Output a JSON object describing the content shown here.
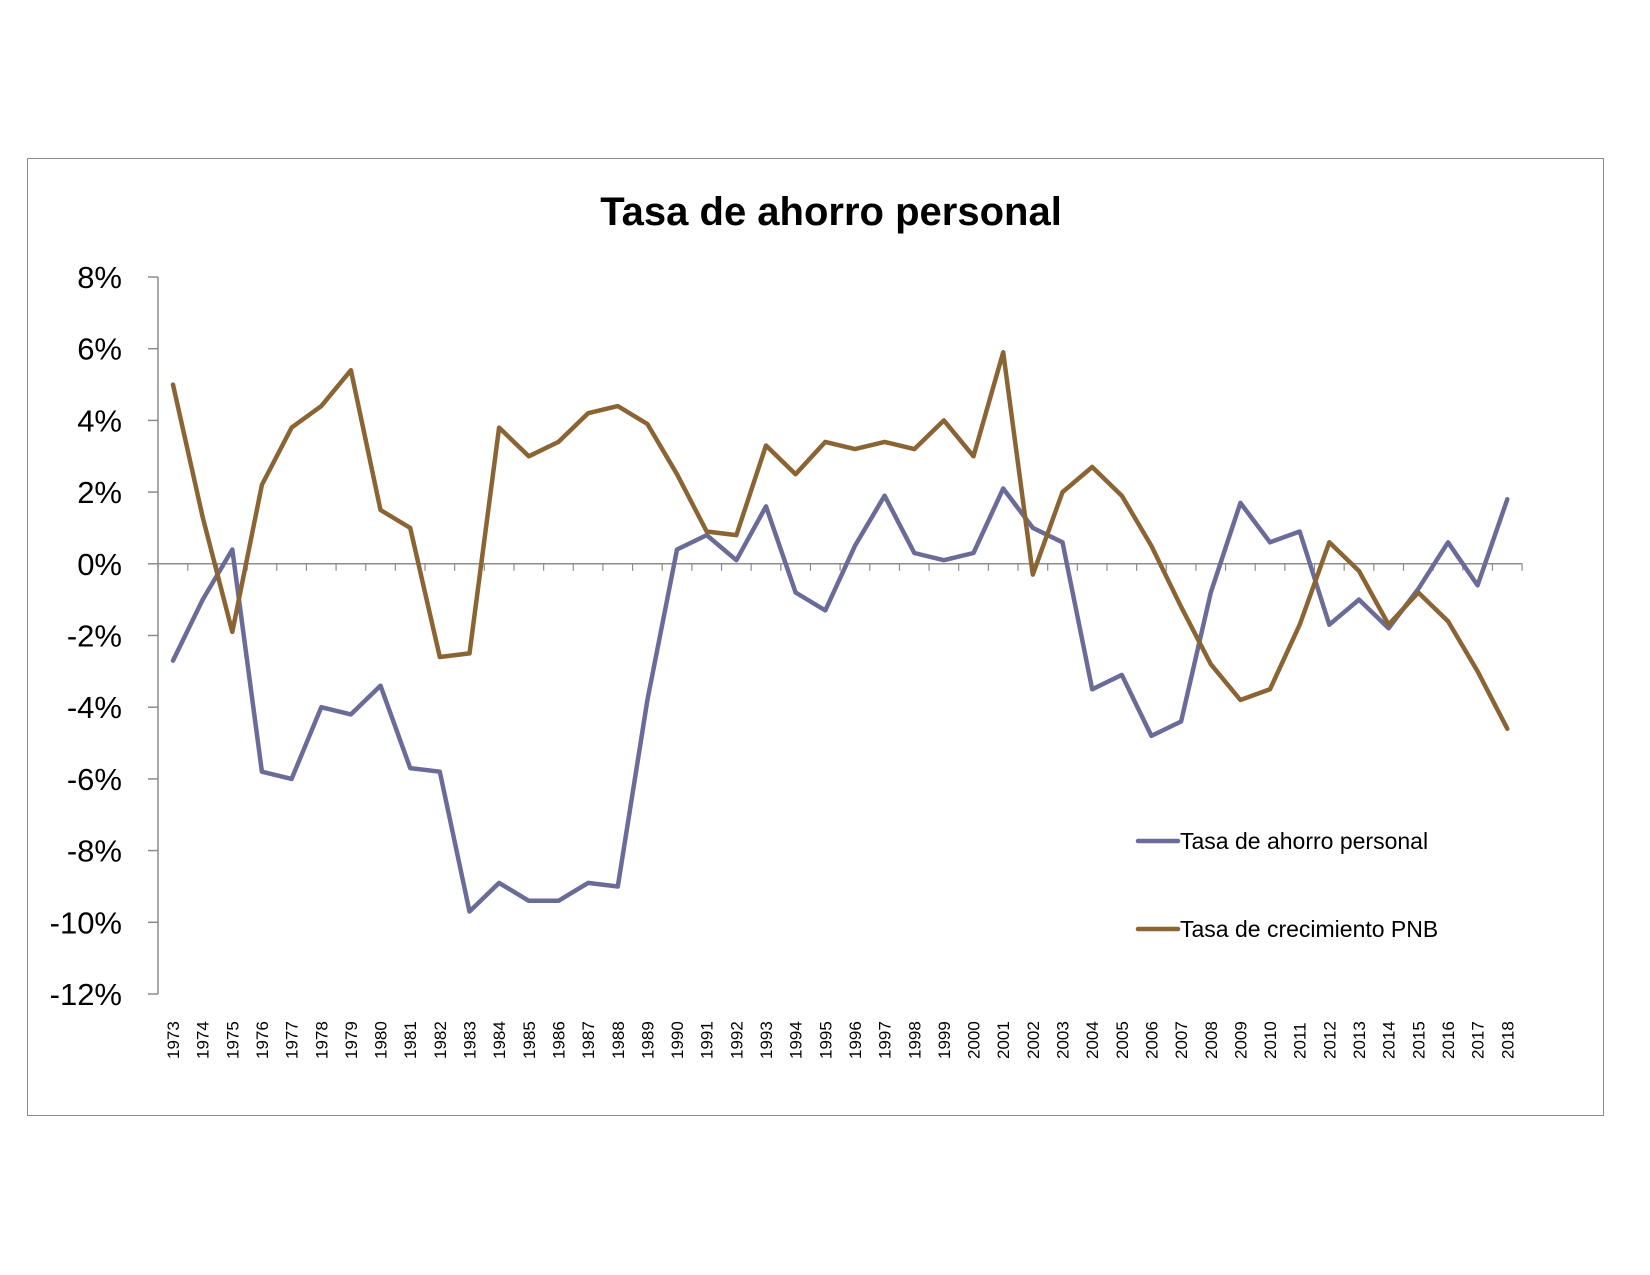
{
  "chart_data": {
    "type": "line",
    "title": "Tasa de ahorro personal",
    "x": [
      "1973",
      "1974",
      "1975",
      "1976",
      "1977",
      "1978",
      "1979",
      "1980",
      "1981",
      "1982",
      "1983",
      "1984",
      "1985",
      "1986",
      "1987",
      "1988",
      "1989",
      "1990",
      "1991",
      "1992",
      "1993",
      "1994",
      "1995",
      "1996",
      "1997",
      "1998",
      "1999",
      "2000",
      "2001",
      "2002",
      "2003",
      "2004",
      "2005",
      "2006",
      "2007",
      "2008",
      "2009",
      "2010",
      "2011",
      "2012",
      "2013",
      "2014",
      "2015",
      "2016",
      "2017",
      "2018"
    ],
    "ylim": [
      -12,
      8
    ],
    "yticks": [
      8,
      6,
      4,
      2,
      0,
      -2,
      -4,
      -6,
      -8,
      -10,
      -12
    ],
    "ytick_labels": [
      "8%",
      "6%",
      "4%",
      "2%",
      "0%",
      "-2%",
      "-4%",
      "-6%",
      "-8%",
      "-10%",
      "-12%"
    ],
    "legend_position": "lower-right",
    "series": [
      {
        "name": "Tasa de ahorro personal",
        "color": "#6b6b99",
        "values": [
          -2.7,
          -1.0,
          0.4,
          -5.8,
          -6.0,
          -4.0,
          -4.2,
          -3.4,
          -5.7,
          -5.8,
          -9.7,
          -8.9,
          -9.4,
          -9.4,
          -8.9,
          -9.0,
          -3.8,
          0.4,
          0.8,
          0.1,
          1.6,
          -0.8,
          -1.3,
          0.5,
          1.9,
          0.3,
          0.1,
          0.3,
          2.1,
          1.0,
          0.6,
          -3.5,
          -3.1,
          -4.8,
          -4.4,
          -0.8,
          1.7,
          0.6,
          0.9,
          -1.7,
          -1.0,
          -1.8,
          -0.7,
          0.6,
          -0.6,
          1.8
        ]
      },
      {
        "name": "Tasa de crecimiento PNB",
        "color": "#8b6434",
        "values": [
          5.0,
          1.3,
          -1.9,
          2.2,
          3.8,
          4.4,
          5.4,
          1.5,
          1.0,
          -2.6,
          -2.5,
          3.8,
          3.0,
          3.4,
          4.2,
          4.4,
          3.9,
          2.5,
          0.9,
          0.8,
          3.3,
          2.5,
          3.4,
          3.2,
          3.4,
          3.2,
          4.0,
          3.0,
          5.9,
          -0.3,
          2.0,
          2.7,
          1.9,
          0.5,
          -1.2,
          -2.8,
          -3.8,
          -3.5,
          -1.7,
          0.6,
          -0.2,
          -1.7,
          -0.8,
          -1.6,
          -3.0,
          -4.6
        ]
      }
    ]
  }
}
